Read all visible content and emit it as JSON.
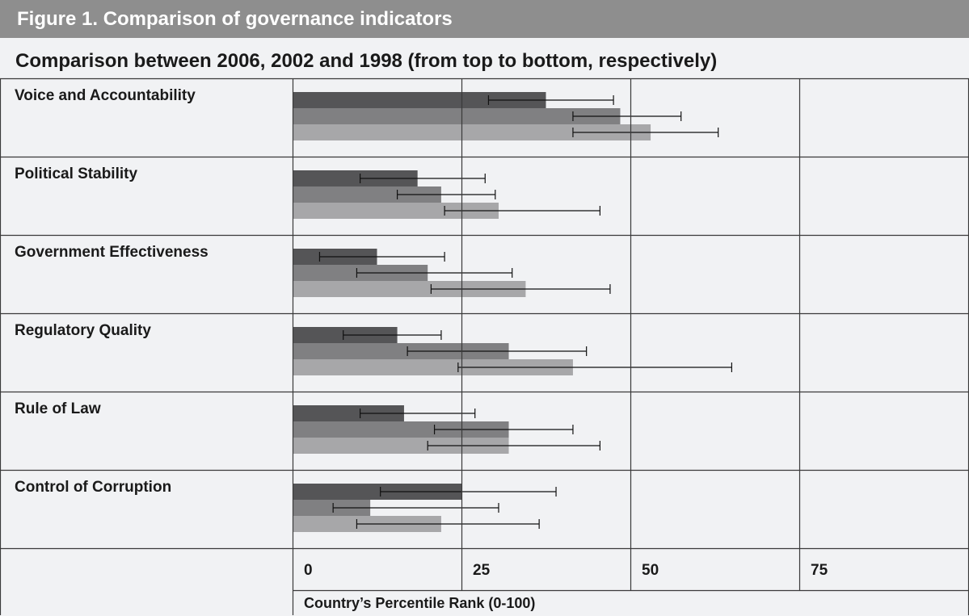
{
  "figure": {
    "header": "Figure 1. Comparison of governance indicators",
    "subtitle": "Comparison between 2006, 2002 and 1998 (from top to bottom, respectively)"
  },
  "colors": {
    "header_bg": "#8e8e8e",
    "background": "#f1f2f4",
    "bar_2006": "#555557",
    "bar_2002": "#808082",
    "bar_1998": "#a7a7a9",
    "grid": "#3a3a3a"
  },
  "chart_data": {
    "type": "bar",
    "orientation": "horizontal",
    "title": "Comparison between 2006, 2002 and 1998 (from top to bottom, respectively)",
    "xlabel": "Country’s Percentile Rank (0-100)",
    "xlim": [
      0,
      100
    ],
    "xticks": [
      "0",
      "25",
      "50",
      "75",
      "100"
    ],
    "grid": true,
    "categories": [
      "Voice and Accountability",
      "Political Stability",
      "Government Effectiveness",
      "Regulatory Quality",
      "Rule of Law",
      "Control of Corruption"
    ],
    "series": [
      {
        "key": "2006",
        "values": [
          37.5,
          18.5,
          12.5,
          15.5,
          16.5,
          25
        ],
        "error_low": [
          29,
          10,
          4,
          7.5,
          10,
          13
        ],
        "error_high": [
          47.5,
          28.5,
          22.5,
          22,
          27,
          39
        ]
      },
      {
        "key": "2002",
        "values": [
          48.5,
          22,
          20,
          32,
          32,
          11.5
        ],
        "error_low": [
          41.5,
          15.5,
          9.5,
          17,
          21,
          6
        ],
        "error_high": [
          57.5,
          30,
          32.5,
          43.5,
          41.5,
          30.5
        ]
      },
      {
        "key": "1998",
        "values": [
          53,
          30.5,
          34.5,
          41.5,
          32,
          22
        ],
        "error_low": [
          41.5,
          22.5,
          20.5,
          24.5,
          20,
          9.5
        ],
        "error_high": [
          63,
          45.5,
          47,
          65,
          45.5,
          36.5
        ]
      }
    ]
  }
}
